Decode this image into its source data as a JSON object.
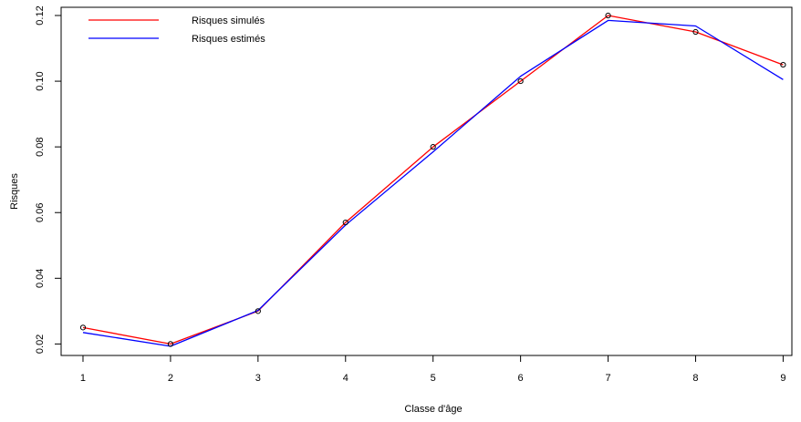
{
  "chart_data": {
    "type": "line",
    "title": "",
    "xlabel": "Classe d'âge",
    "ylabel": "Risques",
    "x": [
      1,
      2,
      3,
      4,
      5,
      6,
      7,
      8,
      9
    ],
    "xlim": [
      0.75,
      9.1
    ],
    "ylim": [
      0.0165,
      0.1225
    ],
    "xticks": [
      "1",
      "2",
      "3",
      "4",
      "5",
      "6",
      "7",
      "8",
      "9"
    ],
    "yticks": [
      "0.02",
      "0.04",
      "0.06",
      "0.08",
      "0.10",
      "0.12"
    ],
    "grid": false,
    "legend_position": "top-left",
    "series": [
      {
        "name": "Risques simulés",
        "color": "#ff0000",
        "markers": true,
        "values": [
          0.025,
          0.02,
          0.03,
          0.057,
          0.08,
          0.1,
          0.12,
          0.115,
          0.105
        ]
      },
      {
        "name": "Risques estimés",
        "color": "#0000ff",
        "markers": false,
        "values": [
          0.0235,
          0.0193,
          0.0302,
          0.0562,
          0.0785,
          0.1015,
          0.1185,
          0.1168,
          0.1005
        ]
      }
    ]
  }
}
